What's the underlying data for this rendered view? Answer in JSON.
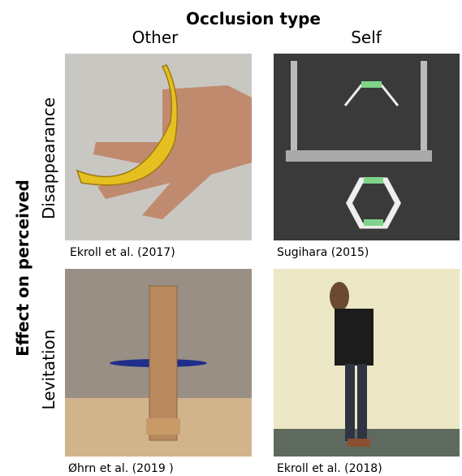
{
  "header": {
    "title": "Occlusion type",
    "columns": [
      "Other",
      "Self"
    ],
    "row_group": "Effect on perceived",
    "rows": [
      "Disappearance",
      "Levitation"
    ]
  },
  "panels": [
    {
      "caption": "Ekroll et al. (2017)"
    },
    {
      "caption": "Sugihara (2015)"
    },
    {
      "caption": "Øhrn et al. (2019 )"
    },
    {
      "caption": "Ekroll et al. (2018)"
    }
  ]
}
